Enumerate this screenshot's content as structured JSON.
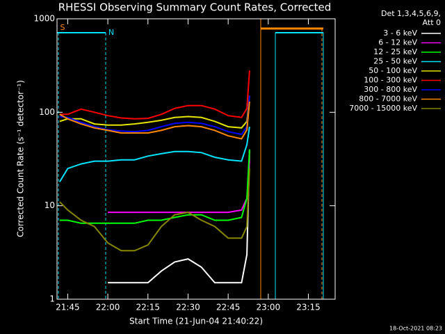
{
  "chart_data": {
    "type": "line",
    "title": "RHESSI Observing Summary Count Rates, Corrected",
    "xlabel": "Start Time (21-Jun-04 21:40:22)",
    "ylabel": "Corrected Count Rate (s⁻¹ detector⁻¹)",
    "legend_title": [
      "Det 1,3,4,5,6,9,",
      "Att 0"
    ],
    "timestamp": "18-Oct-2021 08:23",
    "annotations": [
      {
        "text": "S",
        "color": "#ff8800"
      },
      {
        "text": "N",
        "color": "#00e5ff"
      }
    ],
    "log_y": true,
    "x": [
      "21:42",
      "21:45",
      "21:50",
      "21:55",
      "22:00",
      "22:05",
      "22:10",
      "22:15",
      "22:20",
      "22:25",
      "22:30",
      "22:35",
      "22:40",
      "22:45",
      "22:50",
      "22:52",
      "22:53"
    ],
    "xlim": [
      "21:41",
      "23:25"
    ],
    "xticks": [
      "21:45",
      "22:00",
      "22:15",
      "22:30",
      "22:45",
      "23:00",
      "23:15"
    ],
    "ylim": [
      1,
      1000
    ],
    "yticks": [
      1,
      10,
      100,
      1000
    ],
    "series": [
      {
        "name": "3 - 6 keV",
        "color": "#ffffff",
        "values": [
          null,
          null,
          null,
          null,
          1.5,
          1.5,
          1.5,
          1.5,
          2,
          2.5,
          2.7,
          2.2,
          1.5,
          1.5,
          1.5,
          3,
          40
        ]
      },
      {
        "name": "6 - 12 keV",
        "color": "#ff00ff",
        "values": [
          null,
          null,
          null,
          null,
          8.5,
          8.5,
          8.5,
          8.5,
          8.5,
          8.5,
          8.5,
          8.5,
          8.5,
          8.5,
          9,
          12,
          30
        ]
      },
      {
        "name": "12 - 25 keV",
        "color": "#00ff00",
        "values": [
          7,
          7,
          6.5,
          6.5,
          6.5,
          6.5,
          6.5,
          7,
          7,
          7.5,
          8,
          8,
          7,
          7,
          7.5,
          12,
          40
        ]
      },
      {
        "name": "25 - 50 keV",
        "color": "#00e5ff",
        "values": [
          18,
          25,
          28,
          30,
          30,
          31,
          31,
          34,
          36,
          38,
          38,
          37,
          33,
          31,
          30,
          45,
          70
        ]
      },
      {
        "name": "50 - 100 keV",
        "color": "#e5e500",
        "values": [
          80,
          85,
          85,
          75,
          73,
          73,
          75,
          78,
          82,
          88,
          90,
          88,
          80,
          70,
          68,
          80,
          150
        ]
      },
      {
        "name": "100 - 300 keV",
        "color": "#ff0000",
        "values": [
          95,
          95,
          108,
          100,
          92,
          87,
          85,
          86,
          95,
          110,
          118,
          118,
          108,
          92,
          88,
          110,
          280
        ]
      },
      {
        "name": "300 - 800 keV",
        "color": "#0000ff",
        "values": [
          90,
          88,
          78,
          70,
          65,
          63,
          62,
          64,
          70,
          76,
          78,
          76,
          70,
          62,
          58,
          70,
          150
        ]
      },
      {
        "name": "800 - 7000 keV",
        "color": "#ff8800",
        "values": [
          95,
          85,
          75,
          68,
          64,
          60,
          60,
          60,
          64,
          70,
          72,
          70,
          64,
          56,
          52,
          65,
          130
        ]
      },
      {
        "name": "7000 - 15000 keV",
        "color": "#888800",
        "values": [
          11,
          9,
          7,
          6,
          4,
          3.3,
          3.3,
          3.8,
          6,
          8,
          8.5,
          7,
          6,
          4.5,
          4.5,
          6,
          25
        ]
      }
    ]
  }
}
